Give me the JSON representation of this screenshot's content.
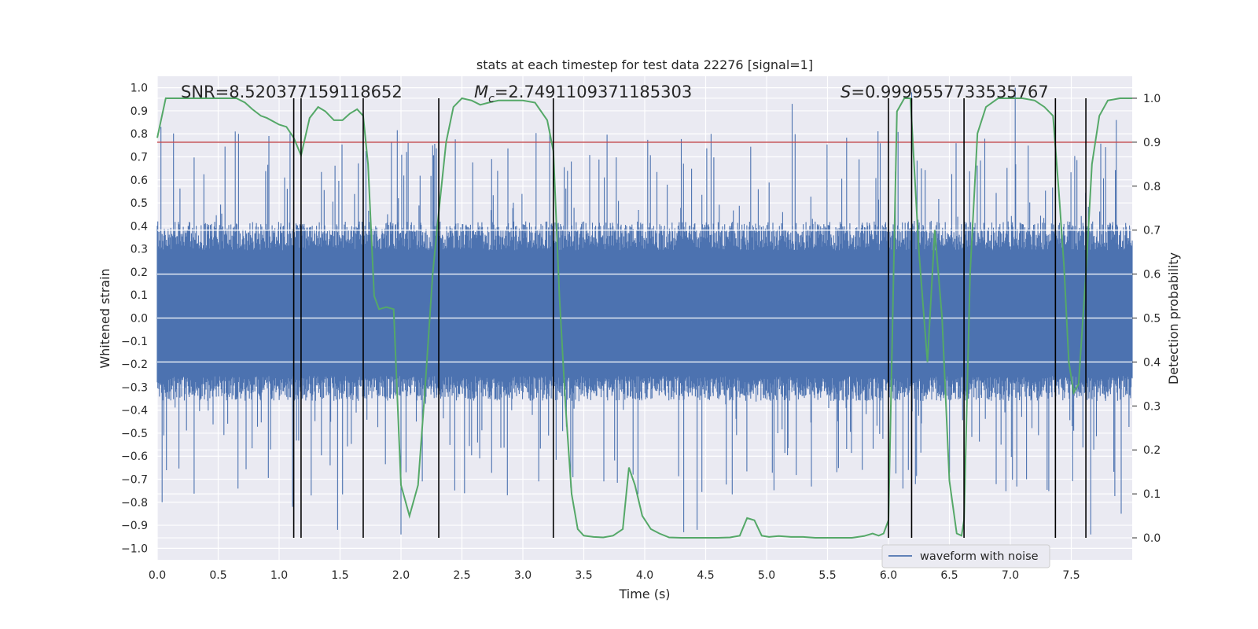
{
  "chart_data": {
    "type": "line",
    "title": "stats at each timestep for test data 22276 [signal=1]",
    "xlabel": "Time (s)",
    "ylabel_left": "Whitened strain",
    "ylabel_right": "Detection probability",
    "xlim": [
      0.0,
      8.0
    ],
    "ylim_left": [
      -1.05,
      1.05
    ],
    "ylim_right": [
      -0.05,
      1.05
    ],
    "grid": true,
    "legend_placement": "lower-right",
    "xticks": [
      "0.0",
      "0.5",
      "1.0",
      "1.5",
      "2.0",
      "2.5",
      "3.0",
      "3.5",
      "4.0",
      "4.5",
      "5.0",
      "5.5",
      "6.0",
      "6.5",
      "7.0",
      "7.5"
    ],
    "yticks_left": [
      "1.0",
      "0.9",
      "0.8",
      "0.7",
      "0.6",
      "0.5",
      "0.4",
      "0.3",
      "0.2",
      "0.1",
      "0.0",
      "−0.1",
      "−0.2",
      "−0.3",
      "−0.4",
      "−0.5",
      "−0.6",
      "−0.7",
      "−0.8",
      "−0.9",
      "−1.0"
    ],
    "yticks_right": [
      "1.0",
      "0.9",
      "0.8",
      "0.7",
      "0.6",
      "0.5",
      "0.4",
      "0.3",
      "0.2",
      "0.1",
      "0.0"
    ],
    "annotations": {
      "snr": "SNR=8.520377159118652",
      "mc_symbol": "M",
      "mc_sub": "c",
      "mc_value": "=2.7491109371185303",
      "s_symbol": "S",
      "s_value": "=0.9999557733535767"
    },
    "threshold": {
      "value": 0.9,
      "axis": "right",
      "color": "#c44e52"
    },
    "vertical_lines_x": [
      1.12,
      1.18,
      1.69,
      2.31,
      3.25,
      6.0,
      6.19,
      6.62,
      7.37,
      7.62
    ],
    "series": [
      {
        "name": "waveform with noise",
        "axis": "left",
        "color": "#4c72b0",
        "envelope": {
          "typical_max": 0.42,
          "typical_min": -0.36,
          "peak_max": 1.0,
          "peak_min": -0.95
        },
        "extreme_spikes": [
          {
            "x": 0.03,
            "y": 0.83
          },
          {
            "x": 0.64,
            "y": 0.81
          },
          {
            "x": 2.26,
            "y": 0.75
          },
          {
            "x": 3.22,
            "y": 0.82
          },
          {
            "x": 5.21,
            "y": 0.93
          },
          {
            "x": 6.19,
            "y": 0.98
          },
          {
            "x": 7.04,
            "y": 1.0
          },
          {
            "x": 7.87,
            "y": 0.86
          },
          {
            "x": 0.04,
            "y": -0.8
          },
          {
            "x": 1.11,
            "y": -0.82
          },
          {
            "x": 1.48,
            "y": -0.92
          },
          {
            "x": 2.0,
            "y": -0.94
          },
          {
            "x": 4.32,
            "y": -0.93
          },
          {
            "x": 4.43,
            "y": -0.92
          },
          {
            "x": 7.66,
            "y": -0.94
          },
          {
            "x": 7.91,
            "y": -0.85
          }
        ]
      },
      {
        "name": "detection probability",
        "axis": "right",
        "color": "#55a868",
        "x": [
          0.0,
          0.07,
          0.15,
          0.25,
          0.35,
          0.45,
          0.55,
          0.65,
          0.72,
          0.78,
          0.85,
          0.9,
          1.0,
          1.06,
          1.12,
          1.18,
          1.25,
          1.32,
          1.38,
          1.45,
          1.52,
          1.58,
          1.64,
          1.69,
          1.73,
          1.78,
          1.82,
          1.88,
          1.94,
          2.0,
          2.07,
          2.14,
          2.2,
          2.26,
          2.31,
          2.37,
          2.43,
          2.5,
          2.58,
          2.65,
          2.72,
          2.8,
          2.9,
          3.0,
          3.1,
          3.2,
          3.25,
          3.3,
          3.35,
          3.4,
          3.45,
          3.5,
          3.58,
          3.66,
          3.74,
          3.82,
          3.87,
          3.92,
          3.98,
          4.05,
          4.12,
          4.2,
          4.3,
          4.4,
          4.5,
          4.6,
          4.7,
          4.78,
          4.84,
          4.9,
          4.96,
          5.02,
          5.1,
          5.2,
          5.3,
          5.4,
          5.5,
          5.6,
          5.7,
          5.8,
          5.87,
          5.92,
          5.96,
          6.0,
          6.07,
          6.13,
          6.18,
          6.25,
          6.32,
          6.38,
          6.44,
          6.5,
          6.56,
          6.6,
          6.62,
          6.67,
          6.73,
          6.8,
          6.9,
          7.0,
          7.1,
          7.2,
          7.28,
          7.35,
          7.4,
          7.44,
          7.48,
          7.52,
          7.56,
          7.62,
          7.67,
          7.73,
          7.8,
          7.9,
          8.0
        ],
        "y": [
          0.91,
          1.0,
          1.0,
          1.0,
          1.0,
          1.0,
          1.0,
          1.0,
          0.99,
          0.975,
          0.96,
          0.955,
          0.94,
          0.935,
          0.91,
          0.87,
          0.955,
          0.98,
          0.97,
          0.95,
          0.95,
          0.965,
          0.975,
          0.96,
          0.85,
          0.55,
          0.52,
          0.525,
          0.52,
          0.12,
          0.05,
          0.12,
          0.35,
          0.6,
          0.74,
          0.9,
          0.98,
          1.0,
          0.995,
          0.985,
          0.99,
          0.995,
          0.995,
          0.995,
          0.99,
          0.95,
          0.88,
          0.55,
          0.3,
          0.1,
          0.02,
          0.005,
          0.002,
          0.001,
          0.005,
          0.02,
          0.16,
          0.12,
          0.05,
          0.02,
          0.01,
          0.001,
          0.0,
          0.0,
          0.0,
          0.0,
          0.001,
          0.005,
          0.045,
          0.04,
          0.005,
          0.002,
          0.004,
          0.002,
          0.002,
          0.0,
          0.0,
          0.0,
          0.0,
          0.004,
          0.01,
          0.005,
          0.01,
          0.04,
          0.97,
          1.0,
          1.0,
          0.65,
          0.4,
          0.7,
          0.5,
          0.13,
          0.01,
          0.005,
          0.04,
          0.6,
          0.92,
          0.98,
          1.0,
          1.0,
          1.0,
          0.995,
          0.98,
          0.96,
          0.78,
          0.62,
          0.4,
          0.33,
          0.35,
          0.6,
          0.85,
          0.96,
          0.995,
          1.0,
          1.0
        ]
      }
    ],
    "legend": [
      {
        "label": "waveform with noise",
        "color": "#4c72b0"
      }
    ]
  }
}
